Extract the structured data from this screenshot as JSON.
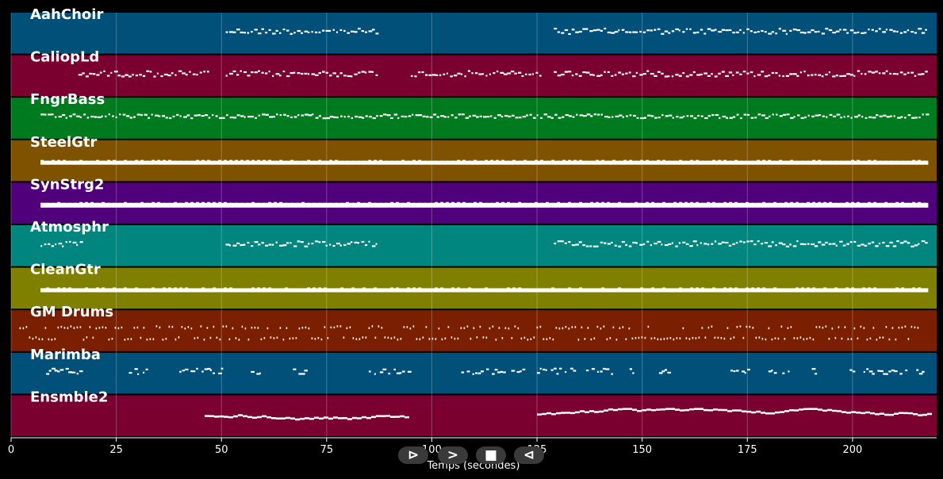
{
  "chart_data": {
    "type": "piano-roll",
    "xlabel": "Temps (secondes)",
    "xlim": [
      0,
      220
    ],
    "xticks": [
      0,
      25,
      50,
      75,
      100,
      125,
      150,
      175,
      200
    ],
    "grid": true,
    "tracks": [
      {
        "name": "AahChoir",
        "color": "#00507a",
        "segments": [
          [
            51,
            87
          ],
          [
            129,
            218
          ]
        ],
        "style": "melody"
      },
      {
        "name": "CaliopLd",
        "color": "#7a0030",
        "segments": [
          [
            16,
            47
          ],
          [
            51,
            87
          ],
          [
            95,
            126
          ],
          [
            129,
            218
          ]
        ],
        "style": "melody"
      },
      {
        "name": "FngrBass",
        "color": "#007a1e",
        "segments": [
          [
            7,
            218
          ]
        ],
        "style": "bass"
      },
      {
        "name": "SteelGtr",
        "color": "#7f5200",
        "segments": [
          [
            7,
            218
          ]
        ],
        "style": "dense"
      },
      {
        "name": "SynStrg2",
        "color": "#50007a",
        "segments": [
          [
            7,
            218
          ]
        ],
        "style": "pad"
      },
      {
        "name": "Atmosphr",
        "color": "#00857f",
        "segments": [
          [
            7,
            17
          ],
          [
            51,
            87
          ],
          [
            129,
            218
          ]
        ],
        "style": "melody"
      },
      {
        "name": "CleanGtr",
        "color": "#7f7f00",
        "segments": [
          [
            7,
            218
          ]
        ],
        "style": "dense"
      },
      {
        "name": "GM Drums",
        "color": "#7a2000",
        "segments": [
          [
            2,
            216
          ]
        ],
        "style": "drums"
      },
      {
        "name": "Marimba",
        "color": "#00507a",
        "segments": [
          [
            7,
            17
          ],
          [
            28,
            32
          ],
          [
            40,
            50
          ],
          [
            57,
            60
          ],
          [
            67,
            70
          ],
          [
            85,
            95
          ],
          [
            107,
            122
          ],
          [
            125,
            134
          ],
          [
            136,
            143
          ],
          [
            147,
            148
          ],
          [
            154,
            156
          ],
          [
            171,
            175
          ],
          [
            180,
            185
          ],
          [
            189,
            191
          ],
          [
            198,
            218
          ]
        ],
        "style": "sparse"
      },
      {
        "name": "Ensmble2",
        "color": "#7a0030",
        "segments": [
          [
            46,
            94
          ],
          [
            125,
            218
          ]
        ],
        "style": "line"
      }
    ]
  },
  "controls": {
    "play_glyph": "⊳",
    "forward_glyph": ">",
    "stop_glyph": "■",
    "back_glyph": "⊲"
  }
}
